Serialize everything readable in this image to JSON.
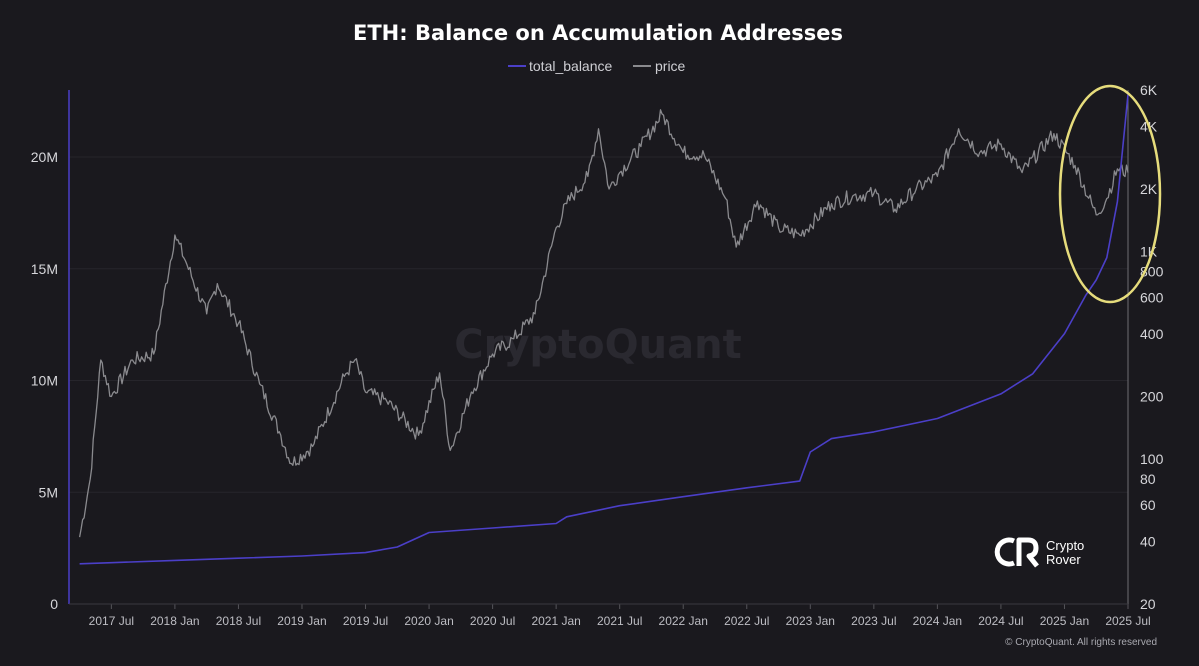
{
  "chart_data": {
    "type": "line",
    "title": "ETH: Balance on Accumulation Addresses",
    "legend": {
      "placement": "top-center",
      "entries": [
        {
          "name": "total_balance",
          "color": "#4b3fc8"
        },
        {
          "name": "price",
          "color": "#8a8a8e"
        }
      ]
    },
    "x_axis": {
      "ticks": [
        "2017 Jul",
        "2018 Jan",
        "2018 Jul",
        "2019 Jan",
        "2019 Jul",
        "2020 Jan",
        "2020 Jul",
        "2021 Jan",
        "2021 Jul",
        "2022 Jan",
        "2022 Jul",
        "2023 Jan",
        "2023 Jul",
        "2024 Jan",
        "2024 Jul",
        "2025 Jan",
        "2025 Jul"
      ],
      "range": [
        "2017-03",
        "2025-07"
      ]
    },
    "y_left": {
      "range": [
        0,
        23000000
      ],
      "tick_values": [
        0,
        5000000,
        10000000,
        15000000,
        20000000
      ],
      "tick_labels": [
        "0",
        "5M",
        "10M",
        "15M",
        "20M"
      ]
    },
    "y_right": {
      "scale": "log",
      "range": [
        20,
        6000
      ],
      "tick_values": [
        20,
        40,
        60,
        80,
        100,
        200,
        400,
        600,
        800,
        1000,
        2000,
        4000,
        6000
      ],
      "tick_labels": [
        "20",
        "40",
        "60",
        "80",
        "100",
        "200",
        "400",
        "600",
        "800",
        "1K",
        "2K",
        "4K",
        "6K"
      ]
    },
    "grid": "horizontal",
    "series": [
      {
        "name": "total_balance",
        "axis": "left",
        "color": "#4b3fc8",
        "x": [
          "2017-04",
          "2017-07",
          "2018-01",
          "2018-07",
          "2019-01",
          "2019-07",
          "2019-10",
          "2020-01",
          "2020-07",
          "2021-01",
          "2021-02",
          "2021-07",
          "2022-01",
          "2022-07",
          "2022-12",
          "2023-01",
          "2023-03",
          "2023-07",
          "2024-01",
          "2024-07",
          "2024-10",
          "2025-01",
          "2025-03",
          "2025-04",
          "2025-05",
          "2025-06",
          "2025-07"
        ],
        "values": [
          1800000,
          1850000,
          1950000,
          2050000,
          2150000,
          2300000,
          2550000,
          3200000,
          3400000,
          3600000,
          3900000,
          4400000,
          4800000,
          5200000,
          5500000,
          6800000,
          7400000,
          7700000,
          8300000,
          9400000,
          10300000,
          12100000,
          13800000,
          14500000,
          15500000,
          18000000,
          22800000
        ]
      },
      {
        "name": "price",
        "axis": "right",
        "color": "#8a8a8e",
        "x": [
          "2017-04",
          "2017-05",
          "2017-06",
          "2017-07",
          "2017-09",
          "2017-11",
          "2018-01",
          "2018-02",
          "2018-04",
          "2018-05",
          "2018-07",
          "2018-09",
          "2018-11",
          "2018-12",
          "2019-02",
          "2019-05",
          "2019-06",
          "2019-07",
          "2019-09",
          "2019-12",
          "2020-02",
          "2020-03",
          "2020-05",
          "2020-07",
          "2020-09",
          "2020-11",
          "2021-01",
          "2021-02",
          "2021-04",
          "2021-05",
          "2021-06",
          "2021-07",
          "2021-09",
          "2021-11",
          "2022-01",
          "2022-03",
          "2022-05",
          "2022-06",
          "2022-08",
          "2022-10",
          "2022-12",
          "2023-03",
          "2023-05",
          "2023-07",
          "2023-09",
          "2023-11",
          "2024-01",
          "2024-03",
          "2024-05",
          "2024-07",
          "2024-09",
          "2024-12",
          "2025-02",
          "2025-04",
          "2025-05",
          "2025-06",
          "2025-07"
        ],
        "values": [
          42,
          80,
          300,
          200,
          300,
          320,
          1200,
          900,
          500,
          700,
          450,
          230,
          130,
          95,
          115,
          250,
          300,
          210,
          190,
          130,
          260,
          110,
          210,
          320,
          380,
          500,
          1300,
          1700,
          2300,
          3900,
          2000,
          2400,
          3200,
          4600,
          3000,
          2900,
          1800,
          1050,
          1750,
          1300,
          1200,
          1700,
          1850,
          1900,
          1600,
          2000,
          2300,
          3900,
          3000,
          3300,
          2400,
          3700,
          2600,
          1500,
          1800,
          2500,
          2400
        ]
      }
    ],
    "annotations": [
      {
        "type": "ellipse",
        "color": "#e6dc7c",
        "x": "2025-05",
        "note": ""
      }
    ]
  },
  "watermark": "CryptoQuant",
  "badge": {
    "line1": "Crypto",
    "line2": "Rover"
  },
  "copyright": "© CryptoQuant. All rights reserved"
}
